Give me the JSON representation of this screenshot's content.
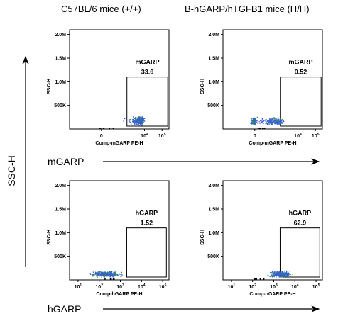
{
  "column_headers": [
    "C57BL/6 mice (+/+)",
    "B-hGARP/hTGFB1 mice (H/H)"
  ],
  "row_labels": [
    "mGARP",
    "hGARP"
  ],
  "y_axis_side_label": "SSC-H",
  "chart_data": [
    {
      "type": "scatter",
      "panel": "C57BL/6 mice (+/+) / mGARP",
      "xlabel": "Comp-mGARP PE-H",
      "ylabel": "SSC-H",
      "x_scale": "biexponential",
      "x_tick_labels": [
        "0",
        "10^4",
        "10^5"
      ],
      "y_tick_labels": [
        "500K",
        "1.0M",
        "1.5M",
        "2.0M"
      ],
      "gate": {
        "name": "mGARP",
        "percent": "33.6"
      },
      "population": {
        "x_range": [
          0,
          10000
        ],
        "y_range": [
          80000,
          280000
        ]
      }
    },
    {
      "type": "scatter",
      "panel": "B-hGARP/hTGFB1 mice (H/H) / mGARP",
      "xlabel": "Comp-mGARP PE-H",
      "ylabel": "SSC-H",
      "x_scale": "biexponential",
      "x_tick_labels": [
        "0",
        "10^4",
        "10^5"
      ],
      "y_tick_labels": [
        "500K",
        "1.0M",
        "1.5M",
        "2.0M"
      ],
      "gate": {
        "name": "mGARP",
        "percent": "0.52"
      },
      "population": {
        "x_range": [
          -1000,
          1500
        ],
        "y_range": [
          80000,
          250000
        ]
      }
    },
    {
      "type": "scatter",
      "panel": "C57BL/6 mice (+/+) / hGARP",
      "xlabel": "Comp-hGARP PE-H",
      "ylabel": "SSC-H",
      "x_scale": "log",
      "x_tick_labels": [
        "10^1",
        "10^2",
        "10^3",
        "10^4",
        "10^5"
      ],
      "y_tick_labels": [
        "500K",
        "1.0M",
        "1.5M",
        "2.0M"
      ],
      "gate": {
        "name": "hGARP",
        "percent": "1.52"
      },
      "population": {
        "x_range": [
          30,
          1500
        ],
        "y_range": [
          60000,
          200000
        ]
      }
    },
    {
      "type": "scatter",
      "panel": "B-hGARP/hTGFB1 mice (H/H) / hGARP",
      "xlabel": "Comp-hGARP PE-H",
      "ylabel": "SSC-H",
      "x_scale": "log",
      "x_tick_labels": [
        "10^1",
        "10^2",
        "10^3",
        "10^4",
        "10^5"
      ],
      "y_tick_labels": [
        "500K",
        "1.0M",
        "1.5M",
        "2.0M"
      ],
      "gate": {
        "name": "hGARP",
        "percent": "62.9"
      },
      "population": {
        "x_range": [
          500,
          8000
        ],
        "y_range": [
          60000,
          200000
        ]
      }
    }
  ],
  "colors": {
    "dots": "#3a5bd9",
    "dots_dense": "#1f9a3a",
    "axis": "#000000"
  }
}
